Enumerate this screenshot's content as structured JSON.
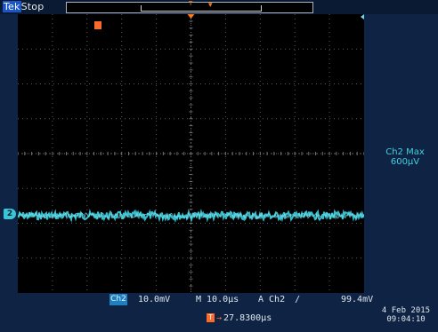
{
  "header": {
    "brand": "Tek",
    "acquisition_state": "Stop"
  },
  "screen": {
    "background": "#000000",
    "trace_color": "#39c7d8",
    "trigger_marker": "T",
    "channel_marker": "2"
  },
  "measurement": {
    "line1": "Ch2 Max",
    "line2": "600μV"
  },
  "status": {
    "channel": "Ch2",
    "volts_per_div": "10.0mV",
    "timebase": "M 10.0μs",
    "trigger": "A  Ch2",
    "trigger_level": "99.4mV",
    "trigger_slope_icon": "rising-edge-icon"
  },
  "horizontal_position": {
    "value": "27.8300μs"
  },
  "datetime": {
    "date": "4 Feb  2015",
    "time": "09:04:10"
  }
}
